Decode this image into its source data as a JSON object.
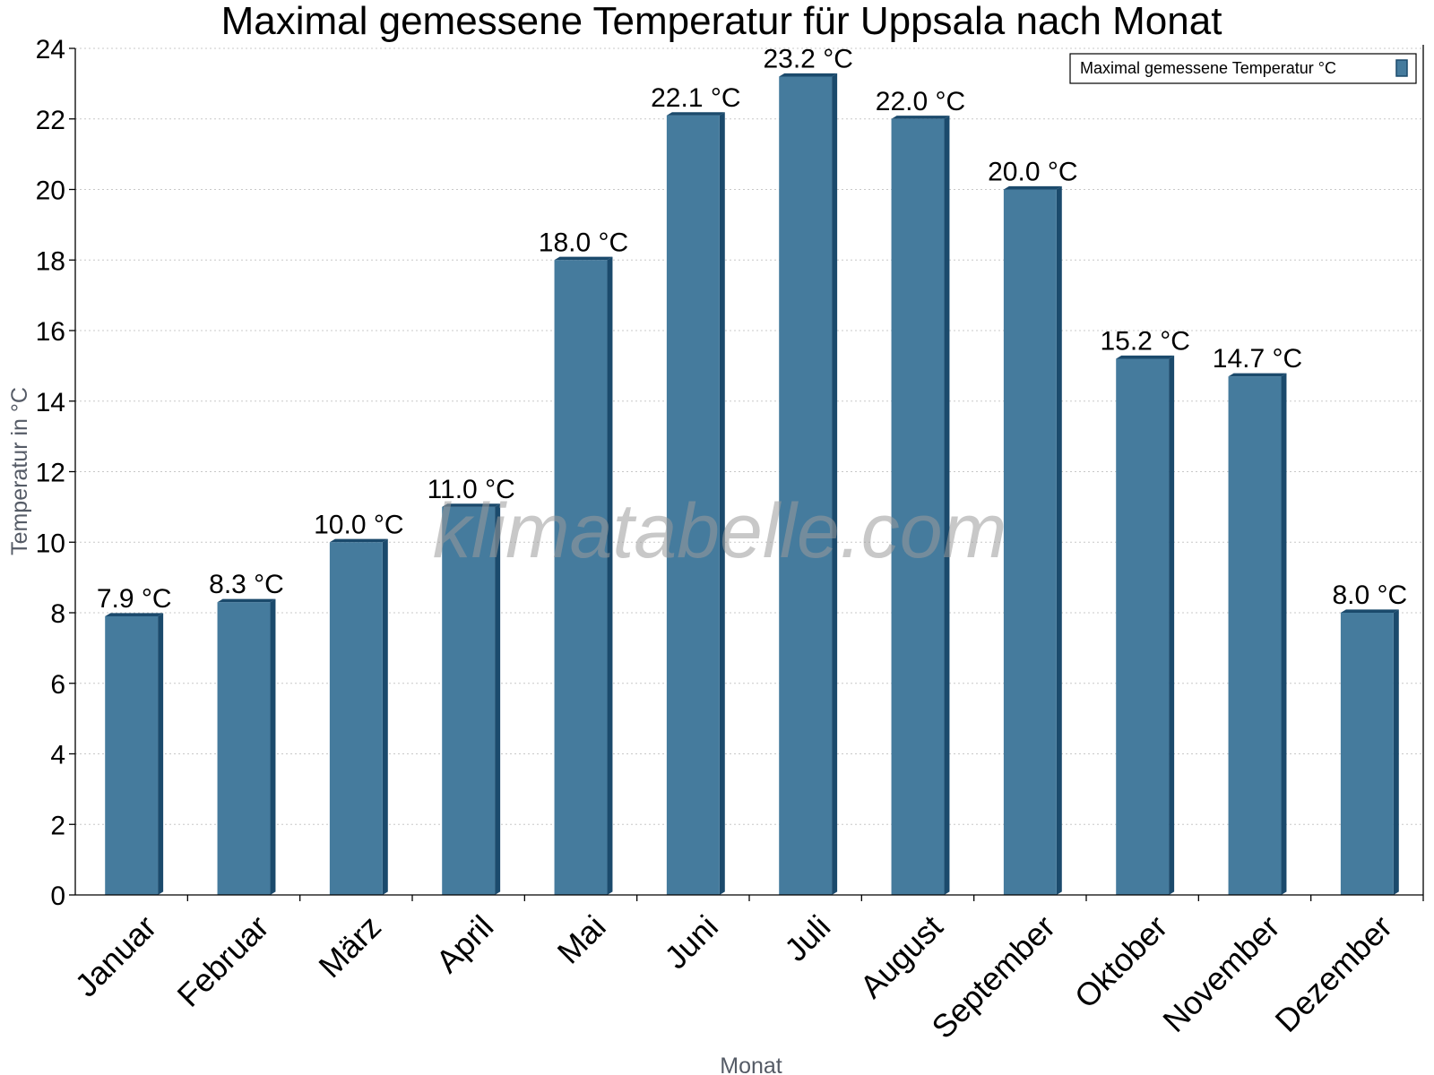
{
  "chart_data": {
    "type": "bar",
    "title": "Maximal gemessene Temperatur für Uppsala nach Monat",
    "xlabel": "Monat",
    "ylabel": "Temperatur in °C",
    "ylim": [
      0,
      24
    ],
    "yticks": [
      0,
      2,
      4,
      6,
      8,
      10,
      12,
      14,
      16,
      18,
      20,
      22,
      24
    ],
    "grid": true,
    "legend_position": "top-right",
    "categories": [
      "Januar",
      "Februar",
      "März",
      "April",
      "Mai",
      "Juni",
      "Juli",
      "August",
      "September",
      "Oktober",
      "November",
      "Dezember"
    ],
    "series": [
      {
        "name": "Maximal gemessene Temperatur °C",
        "values": [
          7.9,
          8.3,
          10.0,
          11.0,
          18.0,
          22.1,
          23.2,
          22.0,
          20.0,
          15.2,
          14.7,
          8.0
        ],
        "labels": [
          "7.9 °C",
          "8.3 °C",
          "10.0 °C",
          "11.0 °C",
          "18.0 °C",
          "22.1 °C",
          "23.2 °C",
          "22.0 °C",
          "20.0 °C",
          "15.2 °C",
          "14.7 °C",
          "8.0 °C"
        ]
      }
    ],
    "colors": {
      "bar_face": "#457b9d",
      "bar_side": "#1b4a6c",
      "bar_top": "#1b4a6c"
    },
    "watermark": "klimatabelle.com"
  }
}
